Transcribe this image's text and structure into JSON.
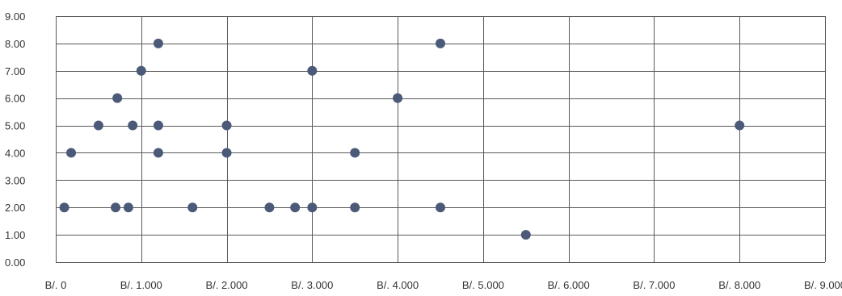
{
  "chart_data": {
    "type": "scatter",
    "title": "",
    "xlabel": "",
    "ylabel": "",
    "xlim": [
      0,
      9000
    ],
    "ylim": [
      0,
      9
    ],
    "x_ticks": [
      {
        "value": 0,
        "label": "B/. 0"
      },
      {
        "value": 1000,
        "label": "B/. 1.000"
      },
      {
        "value": 2000,
        "label": "B/. 2.000"
      },
      {
        "value": 3000,
        "label": "B/. 3.000"
      },
      {
        "value": 4000,
        "label": "B/. 4.000"
      },
      {
        "value": 5000,
        "label": "B/. 5.000"
      },
      {
        "value": 6000,
        "label": "B/. 6.000"
      },
      {
        "value": 7000,
        "label": "B/. 7.000"
      },
      {
        "value": 8000,
        "label": "B/. 8.000"
      },
      {
        "value": 9000,
        "label": "B/. 9.000"
      }
    ],
    "y_ticks": [
      {
        "value": 0,
        "label": "0.00"
      },
      {
        "value": 1,
        "label": "1.00"
      },
      {
        "value": 2,
        "label": "2.00"
      },
      {
        "value": 3,
        "label": "3.00"
      },
      {
        "value": 4,
        "label": "4.00"
      },
      {
        "value": 5,
        "label": "5.00"
      },
      {
        "value": 6,
        "label": "6.00"
      },
      {
        "value": 7,
        "label": "7.00"
      },
      {
        "value": 8,
        "label": "8.00"
      },
      {
        "value": 9,
        "label": "9.00"
      }
    ],
    "grid": true,
    "legend": "none",
    "marker_color": "#4b5a78",
    "grid_color": "#595959",
    "points": [
      {
        "x": 100,
        "y": 2
      },
      {
        "x": 180,
        "y": 4
      },
      {
        "x": 500,
        "y": 5
      },
      {
        "x": 700,
        "y": 2
      },
      {
        "x": 720,
        "y": 6
      },
      {
        "x": 850,
        "y": 2
      },
      {
        "x": 900,
        "y": 5
      },
      {
        "x": 1000,
        "y": 7
      },
      {
        "x": 1200,
        "y": 8
      },
      {
        "x": 1200,
        "y": 5
      },
      {
        "x": 1200,
        "y": 4
      },
      {
        "x": 1600,
        "y": 2
      },
      {
        "x": 2000,
        "y": 5
      },
      {
        "x": 2000,
        "y": 4
      },
      {
        "x": 2500,
        "y": 2
      },
      {
        "x": 2800,
        "y": 2
      },
      {
        "x": 3000,
        "y": 7
      },
      {
        "x": 3000,
        "y": 2
      },
      {
        "x": 3500,
        "y": 4
      },
      {
        "x": 3500,
        "y": 2
      },
      {
        "x": 4000,
        "y": 6
      },
      {
        "x": 4500,
        "y": 8
      },
      {
        "x": 4500,
        "y": 2
      },
      {
        "x": 5500,
        "y": 1
      },
      {
        "x": 8000,
        "y": 5
      }
    ]
  }
}
